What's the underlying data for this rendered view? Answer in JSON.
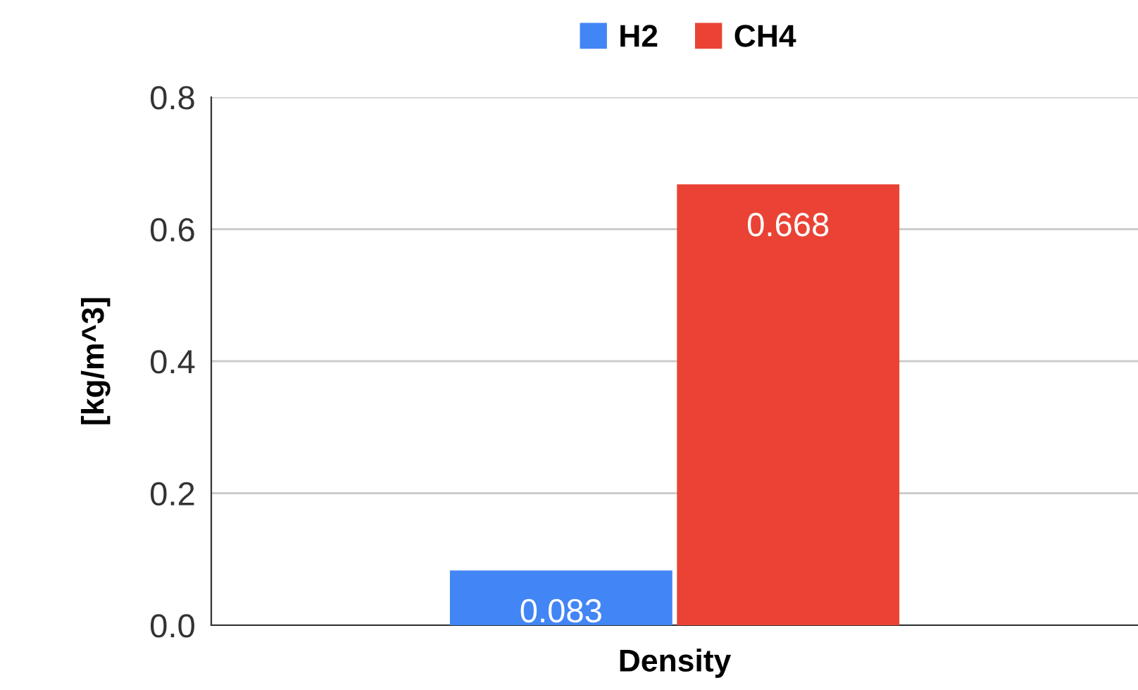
{
  "chart_data": {
    "type": "bar",
    "categories": [
      "Density"
    ],
    "ylabel": "[kg/m^3]",
    "series": [
      {
        "name": "H2",
        "color": "#4285f4",
        "values": [
          0.083
        ]
      },
      {
        "name": "CH4",
        "color": "#ea4335",
        "values": [
          0.668
        ]
      }
    ],
    "ylim": [
      0,
      0.8
    ],
    "yticks": [
      {
        "value": 0,
        "label": "0.0"
      },
      0.2,
      0.4,
      0.6,
      0.8
    ],
    "grid": "y",
    "legend": "top",
    "data_labels": true
  }
}
